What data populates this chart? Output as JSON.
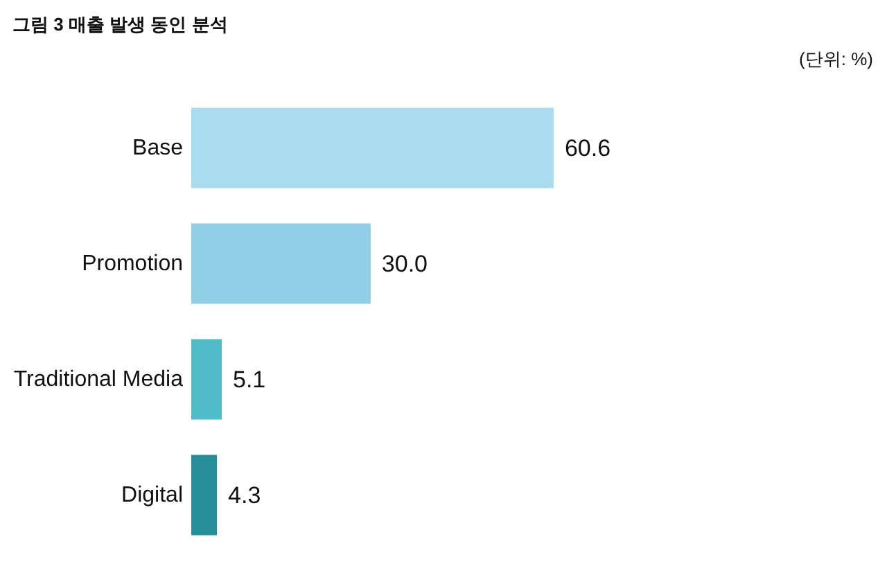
{
  "chart_data": {
    "type": "bar",
    "orientation": "horizontal",
    "title": "그림 3 매출 발생 동인 분석",
    "annotations": [
      "(단위: %)"
    ],
    "categories": [
      "Base",
      "Promotion",
      "Traditional Media",
      "Digital"
    ],
    "values": [
      60.6,
      30.0,
      5.1,
      4.3
    ],
    "colors": [
      "#a9dcef",
      "#8fd0e6",
      "#4fbcc8",
      "#268f9a"
    ],
    "data_labels": true,
    "value_labels": [
      "60.6",
      "30.0",
      "5.1",
      "4.3"
    ]
  }
}
